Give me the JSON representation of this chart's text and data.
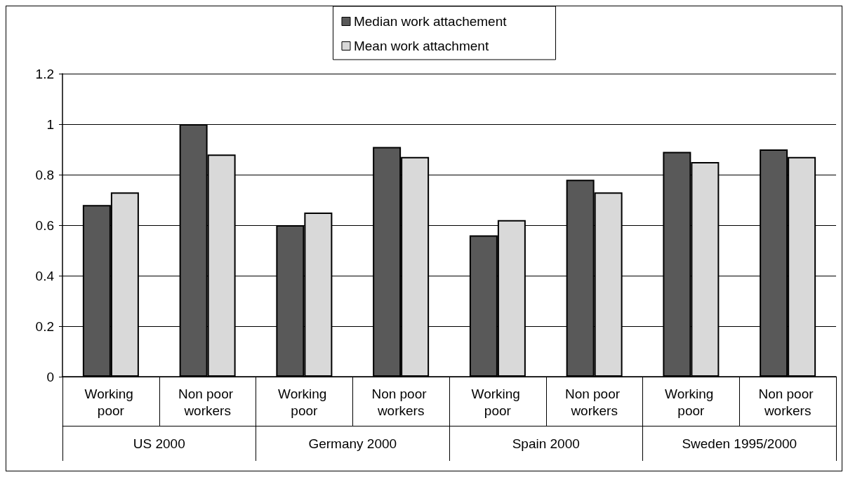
{
  "chart_data": {
    "type": "bar",
    "categories": [
      "Working poor",
      "Non poor workers",
      "Working poor",
      "Non poor workers",
      "Working poor",
      "Non poor workers",
      "Working poor",
      "Non poor workers"
    ],
    "annotations": [
      "US 2000",
      "Germany 2000",
      "Spain 2000",
      "Sweden 1995/2000"
    ],
    "series": [
      {
        "name": "Median work attachement",
        "color": "#595959",
        "values": [
          0.68,
          1.0,
          0.6,
          0.91,
          0.56,
          0.78,
          0.89,
          0.9
        ]
      },
      {
        "name": "Mean work attachment",
        "color": "#d9d9d9",
        "values": [
          0.73,
          0.88,
          0.65,
          0.87,
          0.62,
          0.73,
          0.85,
          0.87
        ]
      }
    ],
    "ylim": [
      0,
      1.2
    ],
    "yticks": [
      0,
      0.2,
      0.4,
      0.6,
      0.8,
      1,
      1.2
    ],
    "grid": "y",
    "legend": "top"
  }
}
